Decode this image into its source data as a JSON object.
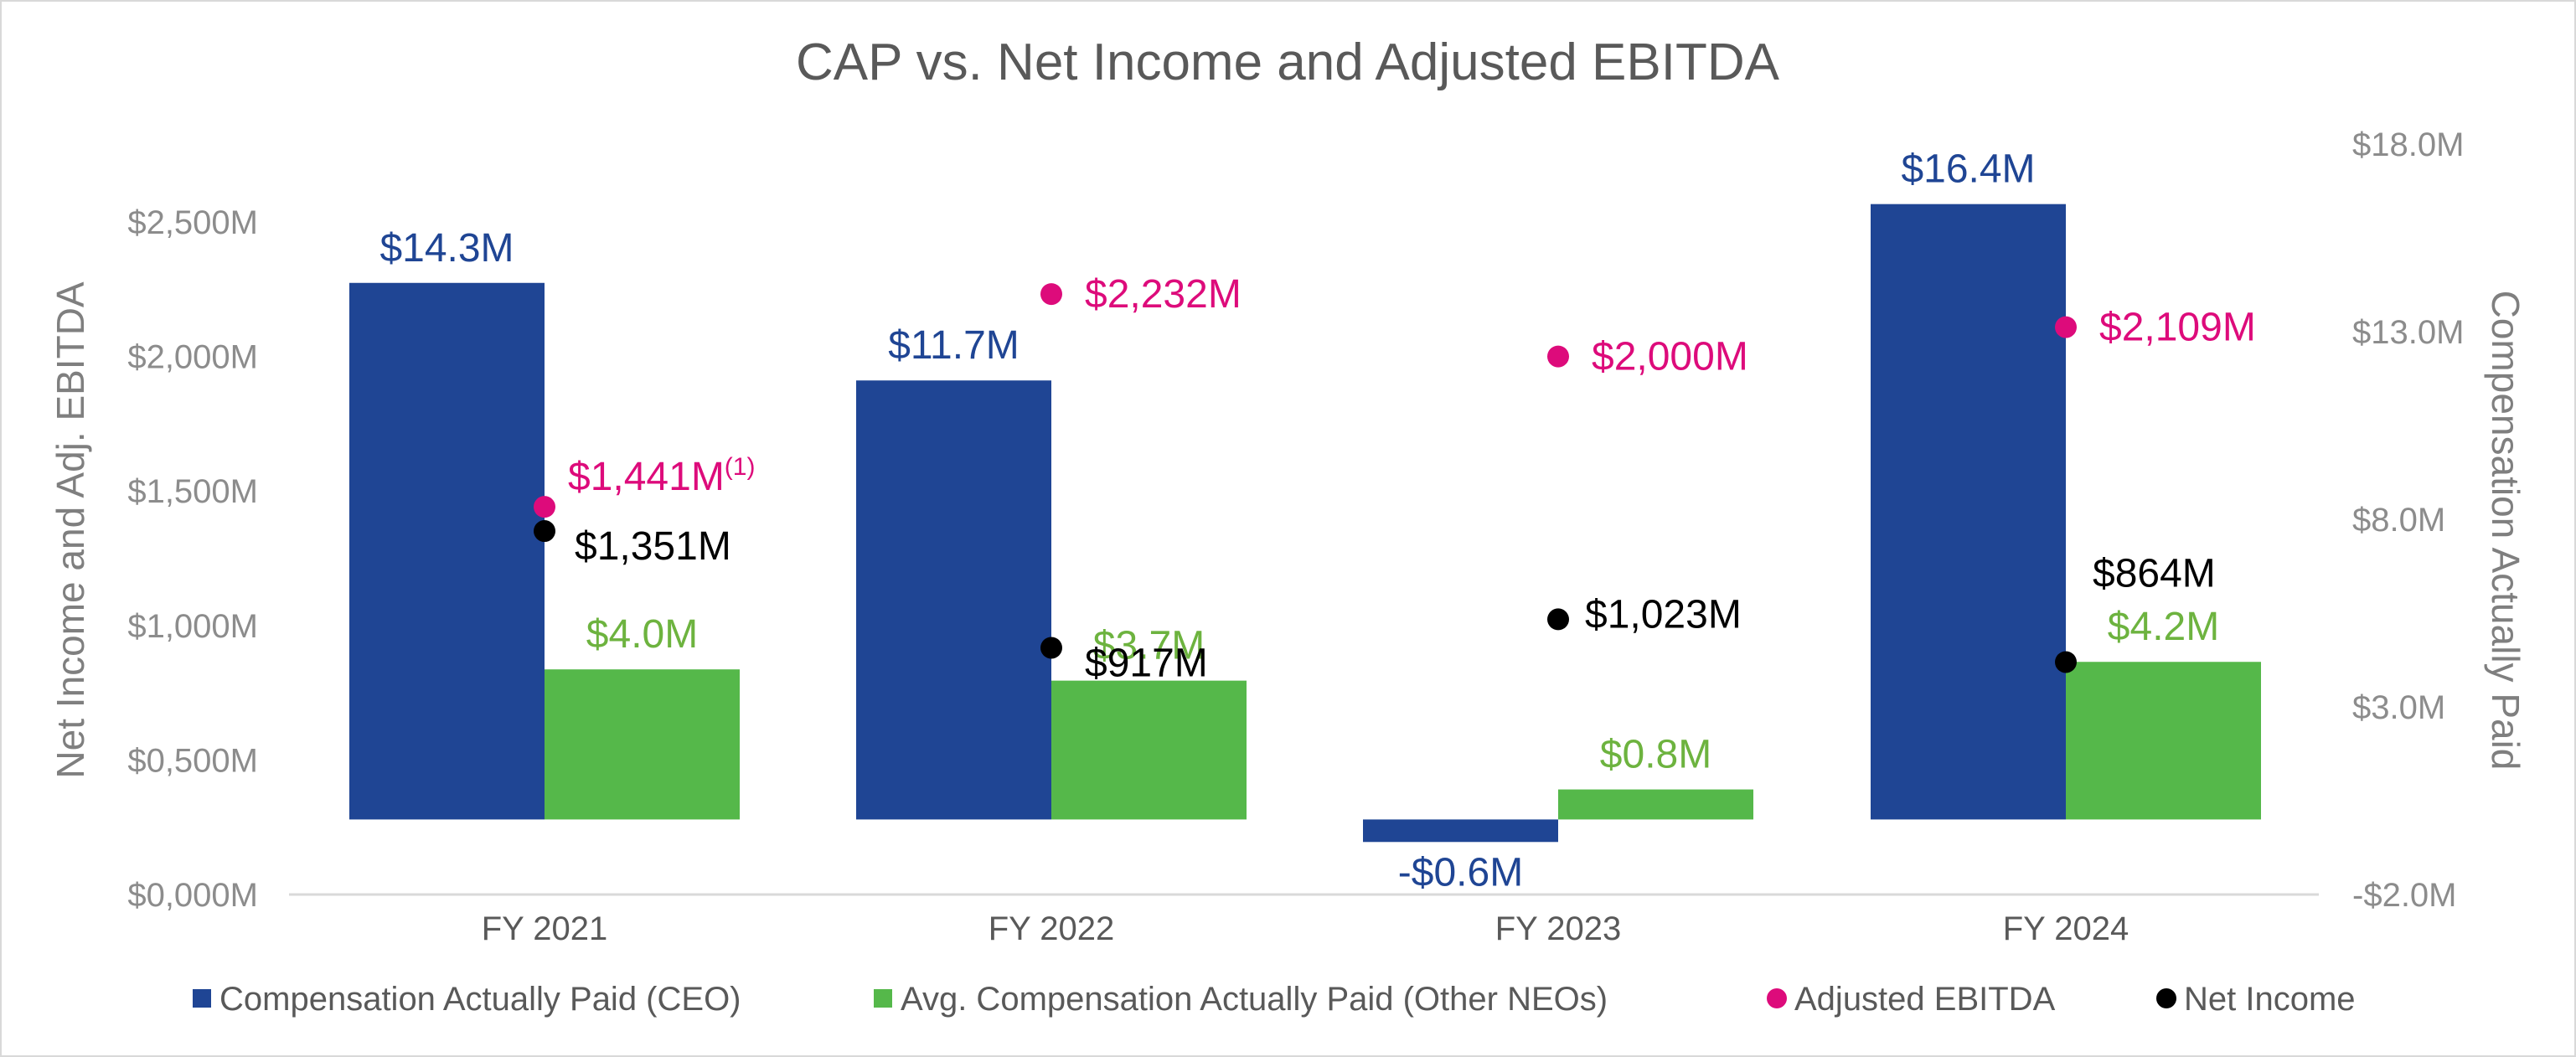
{
  "chart_data": {
    "type": "bar",
    "title": "CAP vs. Net Income and Adjusted EBITDA",
    "categories": [
      "FY 2021",
      "FY 2022",
      "FY 2023",
      "FY 2024"
    ],
    "left_axis": {
      "label": "Net Income and Adj. EBITDA",
      "ylim": [
        0,
        2500
      ],
      "ticks": [
        0,
        500,
        1000,
        1500,
        2000,
        2500
      ],
      "tick_labels": [
        "$0,000M",
        "$0,500M",
        "$1,000M",
        "$1,500M",
        "$2,000M",
        "$2,500M"
      ]
    },
    "right_axis": {
      "label": "Compensation Actually Paid",
      "ylim": [
        -2,
        18
      ],
      "ticks": [
        -2,
        3,
        8,
        13,
        18
      ],
      "tick_labels": [
        "-$2.0M",
        "$3.0M",
        "$8.0M",
        "$13.0M",
        "$18.0M"
      ]
    },
    "series": [
      {
        "name": "Compensation Actually Paid (CEO)",
        "kind": "bar",
        "axis": "right",
        "color": "#1f4594",
        "values": [
          14.3,
          11.7,
          -0.6,
          16.4
        ],
        "labels": [
          "$14.3M",
          "$11.7M",
          "-$0.6M",
          "$16.4M"
        ]
      },
      {
        "name": "Avg. Compensation Actually Paid (Other NEOs)",
        "kind": "bar",
        "axis": "right",
        "color": "#55b84a",
        "label_color": "#6db33f",
        "values": [
          4.0,
          3.7,
          0.8,
          4.2
        ],
        "labels": [
          "$4.0M",
          "$3.7M",
          "$0.8M",
          "$4.2M"
        ]
      },
      {
        "name": "Adjusted EBITDA",
        "kind": "scatter",
        "axis": "left",
        "color": "#dd0b7b",
        "values": [
          1441,
          2232,
          2000,
          2109
        ],
        "labels": [
          "$1,441M",
          "$2,232M",
          "$2,000M",
          "$2,109M"
        ],
        "footnote": "(1)"
      },
      {
        "name": "Net Income",
        "kind": "scatter",
        "axis": "left",
        "color": "#000000",
        "values": [
          1351,
          917,
          1023,
          864
        ],
        "labels": [
          "$1,351M",
          "$917M",
          "$1,023M",
          "$864M"
        ]
      }
    ],
    "grid": false,
    "legend": "bottom"
  }
}
